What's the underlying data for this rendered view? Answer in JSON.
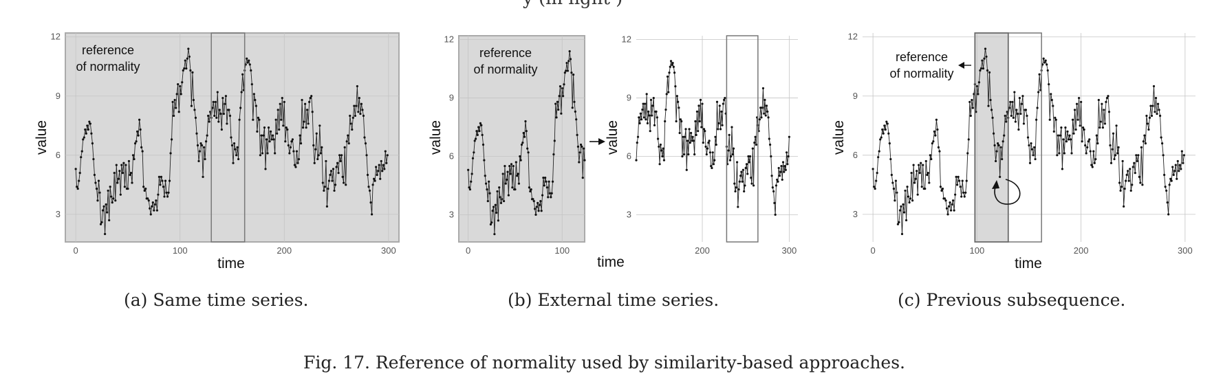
{
  "figure": {
    "caption": "Fig. 17.  Reference of normality used by similarity-based approaches.",
    "top_text": "y (in light    )"
  },
  "chart_data": {
    "type": "line",
    "series_name": "value",
    "values": [
      5.3,
      4.4,
      4.3,
      4.7,
      5.1,
      5.9,
      6.2,
      6.8,
      6.9,
      7.3,
      7.1,
      7.5,
      7.3,
      7.7,
      7.6,
      7.1,
      6.6,
      5.8,
      5.0,
      4.6,
      4.3,
      3.7,
      4.7,
      4.1,
      2.5,
      2.6,
      3.2,
      3.4,
      2.0,
      3.5,
      3.1,
      4.2,
      2.7,
      4.4,
      3.9,
      3.6,
      3.8,
      5.1,
      3.7,
      5.5,
      4.6,
      4.8,
      5.2,
      4.0,
      5.5,
      5.1,
      5.6,
      4.4,
      5.5,
      4.3,
      4.3,
      5.7,
      5.0,
      5.1,
      4.6,
      6.0,
      5.8,
      6.6,
      6.7,
      7.2,
      7.0,
      7.8,
      7.3,
      6.4,
      6.2,
      4.4,
      4.2,
      4.3,
      3.8,
      3.8,
      3.7,
      3.3,
      3.0,
      3.4,
      3.6,
      3.2,
      3.5,
      3.7,
      3.2,
      4.0,
      4.9,
      4.5,
      4.9,
      4.7,
      4.4,
      3.9,
      4.7,
      4.1,
      3.9,
      4.1,
      4.7,
      6.1,
      6.8,
      8.7,
      8.0,
      8.8,
      8.4,
      9.1,
      9.6,
      8.2,
      9.5,
      9.1,
      9.7,
      10.3,
      10.4,
      10.8,
      10.4,
      10.9,
      11.4,
      11.0,
      10.3,
      8.5,
      10.2,
      8.8,
      8.3,
      7.9,
      7.1,
      6.5,
      5.7,
      6.2,
      6.6,
      6.5,
      4.9,
      6.4,
      5.8,
      6.7,
      7.0,
      8.0,
      7.7,
      8.2,
      7.9,
      8.4,
      8.7,
      8.0,
      8.7,
      7.9,
      9.2,
      7.7,
      8.3,
      8.1,
      7.3,
      8.9,
      8.1,
      8.6,
      9.0,
      7.6,
      8.3,
      8.3,
      8.0,
      6.9,
      6.5,
      5.6,
      6.6,
      6.3,
      6.0,
      6.4,
      5.8,
      7.8,
      8.4,
      9.2,
      10.1,
      9.3,
      10.3,
      10.6,
      10.9,
      10.7,
      10.8,
      10.6,
      10.3,
      9.6,
      7.8,
      9.1,
      8.8,
      8.5,
      7.2,
      7.9,
      7.8,
      6.0,
      7.0,
      6.1,
      7.0,
      7.4,
      5.3,
      6.8,
      6.1,
      7.4,
      6.7,
      7.2,
      6.8,
      7.0,
      6.8,
      6.1,
      7.8,
      7.1,
      8.3,
      7.3,
      8.6,
      7.8,
      8.9,
      7.5,
      8.7,
      6.7,
      7.4,
      7.3,
      6.5,
      6.1,
      6.4,
      6.7,
      6.8,
      6.2,
      5.5,
      5.4,
      6.2,
      5.6,
      5.8,
      7.0,
      6.6,
      8.8,
      7.4,
      7.7,
      8.6,
      7.4,
      8.3,
      7.6,
      8.7,
      8.9,
      9.0,
      8.2,
      6.5,
      5.6,
      6.3,
      7.1,
      5.8,
      6.0,
      7.5,
      6.1,
      6.4,
      4.6,
      4.2,
      4.4,
      5.7,
      3.4,
      4.3,
      4.7,
      5.0,
      5.2,
      4.7,
      5.3,
      4.2,
      4.5,
      5.4,
      5.6,
      5.1,
      6.0,
      5.7,
      6.0,
      4.9,
      4.6,
      6.4,
      4.5,
      6.7,
      7.0,
      6.6,
      8.0,
      7.6,
      7.3,
      7.9,
      8.5,
      8.0,
      8.5,
      9.5,
      8.2,
      8.9,
      8.1,
      8.6,
      8.3,
      8.0,
      6.9,
      6.6,
      6.0,
      5.0,
      4.4,
      4.2,
      3.6,
      3.0,
      4.5,
      4.8,
      4.7,
      5.4,
      5.0,
      5.2,
      5.5,
      4.8,
      5.7,
      5.2,
      5.5,
      5.3,
      6.2,
      5.6,
      6.0,
      7.0,
      6.0,
      5.8,
      6.4,
      5.0,
      5.7,
      6.0,
      5.8,
      6.4,
      6.0
    ],
    "xlim": [
      -10,
      310
    ],
    "ylim": [
      1.6,
      12.2
    ],
    "yticks": [
      3,
      6,
      9,
      12
    ],
    "xticks": [
      0,
      100,
      200,
      300
    ],
    "xlabel": "time",
    "ylabel": "value",
    "panels": [
      {
        "id": "a",
        "caption": "(a) Same time series.",
        "annotation": [
          "reference",
          "of normality"
        ],
        "window": [
          130,
          162
        ],
        "shaded_range": [
          -10,
          310
        ],
        "series_range": [
          0,
          299
        ]
      },
      {
        "id": "b",
        "caption": "(b) External time series.",
        "annotation": [
          "reference",
          "of normality"
        ],
        "left_range": [
          0,
          124
        ],
        "right_range": [
          124,
          300
        ],
        "right_xticks": [
          200,
          300
        ],
        "window": [
          228,
          264
        ]
      },
      {
        "id": "c",
        "caption": "(c) Previous subsequence.",
        "annotation": [
          "reference",
          "of normality"
        ],
        "shaded_range": [
          98,
          130
        ],
        "window": [
          130,
          162
        ],
        "series_range": [
          0,
          299
        ]
      }
    ]
  }
}
